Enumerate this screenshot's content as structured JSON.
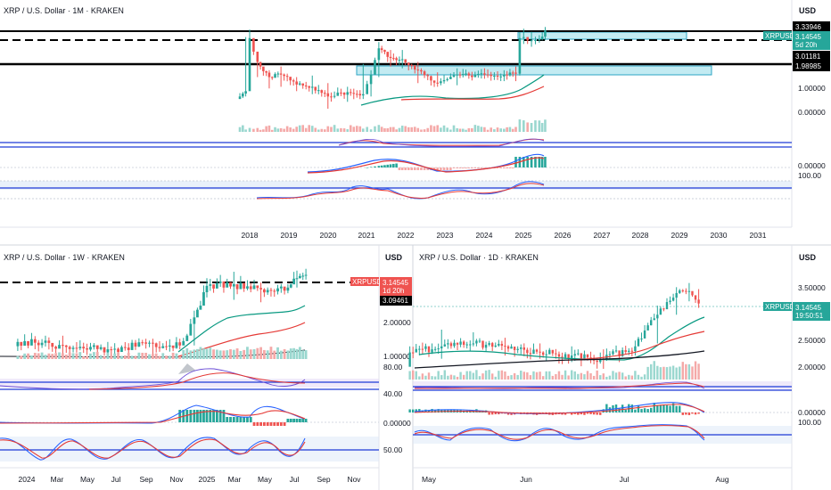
{
  "colors": {
    "up": "#26a69a",
    "down": "#ef5350",
    "ema_fast": "#089981",
    "ema_slow": "#e53935",
    "ma_long": "#131722",
    "zone": "#7fd1e0",
    "zone_stroke": "#2ea6c4",
    "line_blue": "#1e3ad6",
    "line_red": "#e53935",
    "macd_line": "#2962ff"
  },
  "chart_data": [
    {
      "panel": "top",
      "type": "line",
      "title": "XRP / U.S. Dollar · 1M · KRAKEN",
      "currency": "USD",
      "x_labels": [
        "2018",
        "2019",
        "2020",
        "2021",
        "2022",
        "2023",
        "2024",
        "2025",
        "2026",
        "2027",
        "2028",
        "2029",
        "2030",
        "2031"
      ],
      "y_labels": [
        "1.00000",
        "0.00000",
        "0.00000",
        "100.00"
      ],
      "price_levels": [
        "3.33946",
        "3.01181",
        "1.98985"
      ],
      "price_tag": {
        "symbol": "XRPUSD",
        "price": "3.14545",
        "countdown": "5d 20h"
      },
      "x": [
        2017.75,
        2017.9,
        2018.0,
        2018.2,
        2018.5,
        2018.8,
        2019.2,
        2019.6,
        2020.0,
        2020.5,
        2020.9,
        2021.1,
        2021.3,
        2021.6,
        2021.9,
        2022.3,
        2022.8,
        2023.3,
        2023.6,
        2024.0,
        2024.5,
        2024.8,
        2024.9,
        2025.0,
        2025.2,
        2025.4,
        2025.55
      ],
      "close": [
        0.2,
        0.25,
        2.3,
        0.85,
        0.45,
        0.5,
        0.33,
        0.3,
        0.2,
        0.24,
        0.22,
        0.5,
        1.5,
        1.0,
        0.95,
        0.6,
        0.35,
        0.5,
        0.48,
        0.5,
        0.5,
        0.52,
        2.3,
        2.4,
        2.1,
        2.2,
        3.15
      ],
      "high": [
        0.23,
        2.4,
        3.3,
        1.0,
        0.6,
        0.7,
        0.45,
        0.48,
        0.35,
        0.3,
        0.78,
        0.6,
        1.95,
        1.4,
        1.4,
        0.85,
        0.55,
        0.65,
        0.56,
        0.65,
        0.6,
        0.7,
        2.9,
        3.4,
        3.0,
        2.6,
        3.66
      ],
      "low": [
        0.18,
        0.2,
        0.7,
        0.45,
        0.28,
        0.3,
        0.25,
        0.22,
        0.12,
        0.16,
        0.18,
        0.2,
        0.45,
        0.7,
        0.65,
        0.35,
        0.3,
        0.32,
        0.42,
        0.42,
        0.38,
        0.38,
        0.48,
        1.8,
        1.6,
        1.9,
        2.1
      ]
    },
    {
      "panel": "bottom_left",
      "type": "line",
      "title": "XRP / U.S. Dollar · 1W · KRAKEN",
      "currency": "USD",
      "x_labels": [
        "2024",
        "Mar",
        "May",
        "Jul",
        "Sep",
        "Nov",
        "2025",
        "Mar",
        "May",
        "Jul",
        "Sep",
        "Nov"
      ],
      "y_labels": [
        "2.00000",
        "1.00000",
        "80.00",
        "40.00",
        "0.00000",
        "50.00"
      ],
      "price_levels": [
        "3.09461"
      ],
      "price_tag": {
        "symbol": "XRPUSD",
        "price": "3.14545",
        "countdown": "1d 20h"
      },
      "x": [
        2023.95,
        2024.2,
        2024.45,
        2024.7,
        2024.85,
        2024.93,
        2025.0,
        2025.15,
        2025.3,
        2025.45,
        2025.5,
        2025.55
      ],
      "close": [
        0.6,
        0.55,
        0.5,
        0.58,
        0.55,
        1.1,
        2.4,
        2.5,
        2.2,
        2.3,
        2.9,
        3.15
      ],
      "high": [
        0.65,
        0.7,
        0.6,
        0.65,
        0.65,
        1.3,
        2.9,
        3.4,
        2.6,
        2.5,
        3.5,
        3.66
      ],
      "low": [
        0.48,
        0.45,
        0.42,
        0.42,
        0.5,
        0.55,
        1.8,
        1.7,
        1.6,
        2.0,
        2.3,
        2.8
      ]
    },
    {
      "panel": "bottom_right",
      "type": "line",
      "title": "XRP / U.S. Dollar · 1D · KRAKEN",
      "currency": "USD",
      "x_labels": [
        "May",
        "Jun",
        "Jul",
        "Aug"
      ],
      "y_labels": [
        "3.50000",
        "2.50000",
        "2.00000",
        "0.00000",
        "100.00"
      ],
      "price_tag": {
        "symbol": "XRPUSD",
        "price": "3.14545",
        "countdown": "19:50:51"
      },
      "x": [
        "2025-04-25",
        "2025-05-05",
        "2025-05-15",
        "2025-05-25",
        "2025-06-05",
        "2025-06-15",
        "2025-06-25",
        "2025-07-05",
        "2025-07-12",
        "2025-07-18",
        "2025-07-22",
        "2025-07-25"
      ],
      "close": [
        2.2,
        2.3,
        2.35,
        2.3,
        2.2,
        2.15,
        2.1,
        2.3,
        2.9,
        3.4,
        3.45,
        3.15
      ],
      "high": [
        2.3,
        2.6,
        2.55,
        2.45,
        2.35,
        2.3,
        2.25,
        2.4,
        3.1,
        3.55,
        3.66,
        3.5
      ],
      "low": [
        2.05,
        2.1,
        2.3,
        2.15,
        2.1,
        2.05,
        1.95,
        2.15,
        2.35,
        2.9,
        3.2,
        3.05
      ]
    }
  ]
}
